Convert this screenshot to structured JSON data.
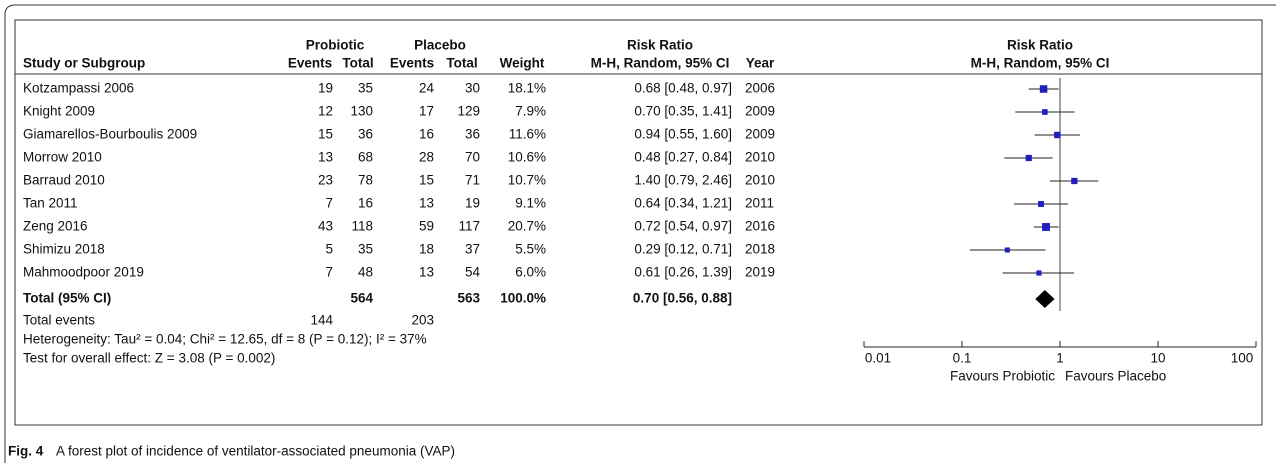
{
  "chart_data": {
    "type": "forest",
    "group_headers": [
      "Probiotic",
      "Placebo",
      "Risk Ratio",
      "Risk Ratio"
    ],
    "columns": [
      "Study or Subgroup",
      "Events",
      "Total",
      "Events",
      "Total",
      "Weight",
      "M-H, Random, 95% CI",
      "Year",
      "M-H, Random, 95% CI"
    ],
    "rows": [
      [
        "Kotzampassi 2006",
        19,
        35,
        24,
        30,
        "18.1%",
        "0.68 [0.48, 0.97]",
        2006
      ],
      [
        "Knight 2009",
        12,
        130,
        17,
        129,
        "7.9%",
        "0.70 [0.35, 1.41]",
        2009
      ],
      [
        "Giamarellos-Bourboulis 2009",
        15,
        36,
        16,
        36,
        "11.6%",
        "0.94 [0.55, 1.60]",
        2009
      ],
      [
        "Morrow  2010",
        13,
        68,
        28,
        70,
        "10.6%",
        "0.48 [0.27, 0.84]",
        2010
      ],
      [
        "Barraud 2010",
        23,
        78,
        15,
        71,
        "10.7%",
        "1.40 [0.79, 2.46]",
        2010
      ],
      [
        "Tan 2011",
        7,
        16,
        13,
        19,
        "9.1%",
        "0.64 [0.34, 1.21]",
        2011
      ],
      [
        "Zeng 2016",
        43,
        118,
        59,
        117,
        "20.7%",
        "0.72 [0.54, 0.97]",
        2016
      ],
      [
        "Shimizu 2018",
        5,
        35,
        18,
        37,
        "5.5%",
        "0.29 [0.12, 0.71]",
        2018
      ],
      [
        "Mahmoodpoor 2019",
        7,
        48,
        13,
        54,
        "6.0%",
        "0.61 [0.26, 1.39]",
        2019
      ]
    ],
    "weights": [
      18.1,
      7.9,
      11.6,
      10.6,
      10.7,
      9.1,
      20.7,
      5.5,
      6.0
    ],
    "rr": [
      0.68,
      0.7,
      0.94,
      0.48,
      1.4,
      0.64,
      0.72,
      0.29,
      0.61
    ],
    "lower": [
      0.48,
      0.35,
      0.55,
      0.27,
      0.79,
      0.34,
      0.54,
      0.12,
      0.26
    ],
    "upper": [
      0.97,
      1.41,
      1.6,
      0.84,
      2.46,
      1.21,
      0.97,
      0.71,
      1.39
    ],
    "total": {
      "label": "Total (95% CI)",
      "exp_total": 564,
      "ctl_total": 563,
      "weight": "100.0%",
      "ci": "0.70 [0.56, 0.88]",
      "rr": 0.7,
      "lower": 0.56,
      "upper": 0.88
    },
    "total_events": {
      "label": "Total events",
      "exp": 144,
      "ctl": 203
    },
    "heterogeneity": "Heterogeneity: Tau² = 0.04; Chi² = 12.65, df = 8 (P = 0.12); I² = 37%",
    "overall_effect": "Test for overall effect: Z = 3.08 (P = 0.002)",
    "log_x": true,
    "xlim": [
      0.01,
      100
    ],
    "xticks": [
      0.01,
      0.1,
      1,
      10,
      100
    ],
    "xlabel_left": "Favours Probiotic",
    "xlabel_right": "Favours Placebo",
    "marker_color": "#1f1fbf",
    "caption_label": "Fig. 4",
    "caption": "A forest plot of incidence of ventilator-associated pneumonia (VAP)"
  }
}
